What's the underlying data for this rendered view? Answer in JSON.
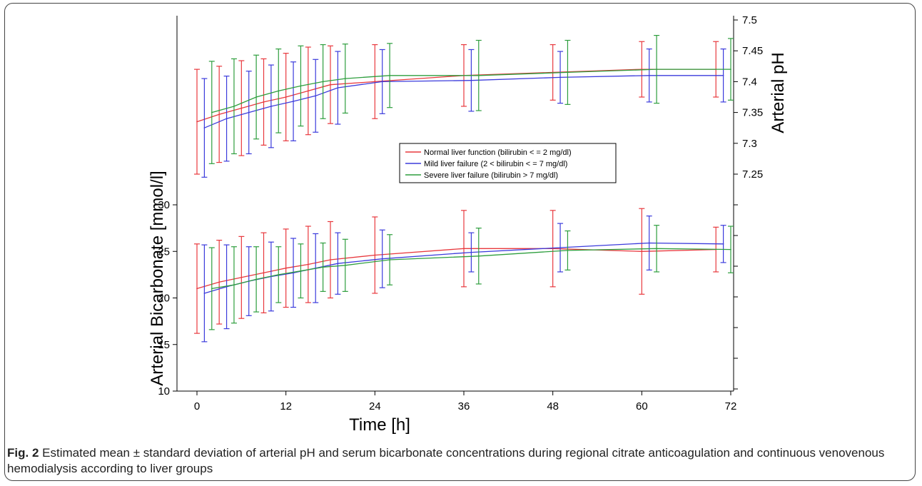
{
  "caption": {
    "label": "Fig. 2",
    "text": "Estimated mean ± standard deviation of arterial pH and serum bicarbonate concentrations during regional citrate anticoagulation and continuous venovenous hemodialysis according to liver groups"
  },
  "chart_data": {
    "type": "line",
    "xlabel": "Time [h]",
    "ylabel_left": "Arterial Bicarbonate [mmol/l]",
    "ylabel_right": "Arterial pH",
    "x_ticks": [
      "0",
      "12",
      "24",
      "36",
      "48",
      "60",
      "72"
    ],
    "xlim": [
      -1,
      74
    ],
    "y_left_ticks": [
      "10",
      "15",
      "20",
      "25",
      "30"
    ],
    "ylim_left": [
      10,
      30
    ],
    "y_right_ticks": [
      "7.25",
      "7.3",
      "7.35",
      "7.4",
      "7.45",
      "7.5"
    ],
    "ylim_right": [
      7.25,
      7.5
    ],
    "grid": false,
    "legend_position": "center",
    "series_colors": {
      "normal": "#e8383d",
      "mild": "#3b3bdc",
      "severe": "#2e9e3e"
    },
    "legend": [
      {
        "key": "normal",
        "label": "Normal liver function (bilirubin < = 2 mg/dl)"
      },
      {
        "key": "mild",
        "label": "Mild liver failure (2 < bilirubin < = 7 mg/dl)"
      },
      {
        "key": "severe",
        "label": "Severe liver failure (bilirubin > 7 mg/dl)"
      }
    ],
    "ph_series": [
      {
        "key": "normal",
        "x": [
          0,
          3,
          6,
          9,
          12,
          15,
          18,
          24,
          36,
          48,
          60,
          70
        ],
        "y": [
          7.335,
          7.347,
          7.357,
          7.367,
          7.375,
          7.385,
          7.395,
          7.4,
          7.41,
          7.415,
          7.42,
          7.42
        ],
        "err": [
          0.085,
          0.078,
          0.077,
          0.07,
          0.071,
          0.071,
          0.063,
          0.06,
          0.05,
          0.045,
          0.045,
          0.045
        ]
      },
      {
        "key": "mild",
        "x": [
          1,
          4,
          7,
          10,
          13,
          16,
          19,
          25,
          37,
          49,
          61,
          71
        ],
        "y": [
          7.325,
          7.34,
          7.35,
          7.36,
          7.368,
          7.377,
          7.39,
          7.4,
          7.402,
          7.407,
          7.41,
          7.41
        ],
        "err": [
          0.08,
          0.069,
          0.067,
          0.067,
          0.064,
          0.059,
          0.059,
          0.052,
          0.05,
          0.042,
          0.043,
          0.043
        ]
      },
      {
        "key": "severe",
        "x": [
          2,
          5,
          8,
          11,
          14,
          17,
          20,
          26,
          38,
          50,
          62,
          72
        ],
        "y": [
          7.35,
          7.36,
          7.375,
          7.385,
          7.393,
          7.4,
          7.405,
          7.41,
          7.41,
          7.415,
          7.42,
          7.42
        ],
        "err": [
          0.083,
          0.077,
          0.068,
          0.068,
          0.065,
          0.06,
          0.056,
          0.052,
          0.057,
          0.052,
          0.055,
          0.05
        ]
      }
    ],
    "bicarbonate_series": [
      {
        "key": "normal",
        "x": [
          0,
          3,
          6,
          9,
          12,
          15,
          18,
          24,
          36,
          48,
          60,
          70
        ],
        "y": [
          21,
          21.7,
          22.2,
          22.7,
          23.2,
          23.6,
          24.1,
          24.6,
          25.3,
          25.3,
          25,
          25.2
        ],
        "err": [
          4.8,
          4.5,
          4.4,
          4.3,
          4.2,
          4.1,
          4.1,
          4.1,
          4.1,
          4.1,
          4.6,
          2.4
        ]
      },
      {
        "key": "mild",
        "x": [
          1,
          4,
          7,
          10,
          13,
          16,
          19,
          25,
          37,
          49,
          61,
          71
        ],
        "y": [
          20.5,
          21.2,
          21.8,
          22.3,
          22.7,
          23.2,
          23.7,
          24.2,
          24.9,
          25.4,
          25.9,
          25.8
        ],
        "err": [
          5.2,
          4.5,
          3.7,
          3.7,
          3.7,
          3.7,
          3.3,
          3.1,
          2.1,
          2.6,
          2.9,
          2
        ]
      },
      {
        "key": "severe",
        "x": [
          2,
          5,
          8,
          11,
          14,
          17,
          20,
          26,
          38,
          50,
          62,
          72
        ],
        "y": [
          21,
          21.4,
          22,
          22.5,
          22.9,
          23.3,
          23.5,
          24.1,
          24.5,
          25.1,
          25.3,
          25.2
        ],
        "err": [
          4.4,
          4.1,
          3.5,
          3,
          2.9,
          2.6,
          2.8,
          2.7,
          3,
          2.1,
          2.5,
          2.5
        ]
      }
    ]
  }
}
